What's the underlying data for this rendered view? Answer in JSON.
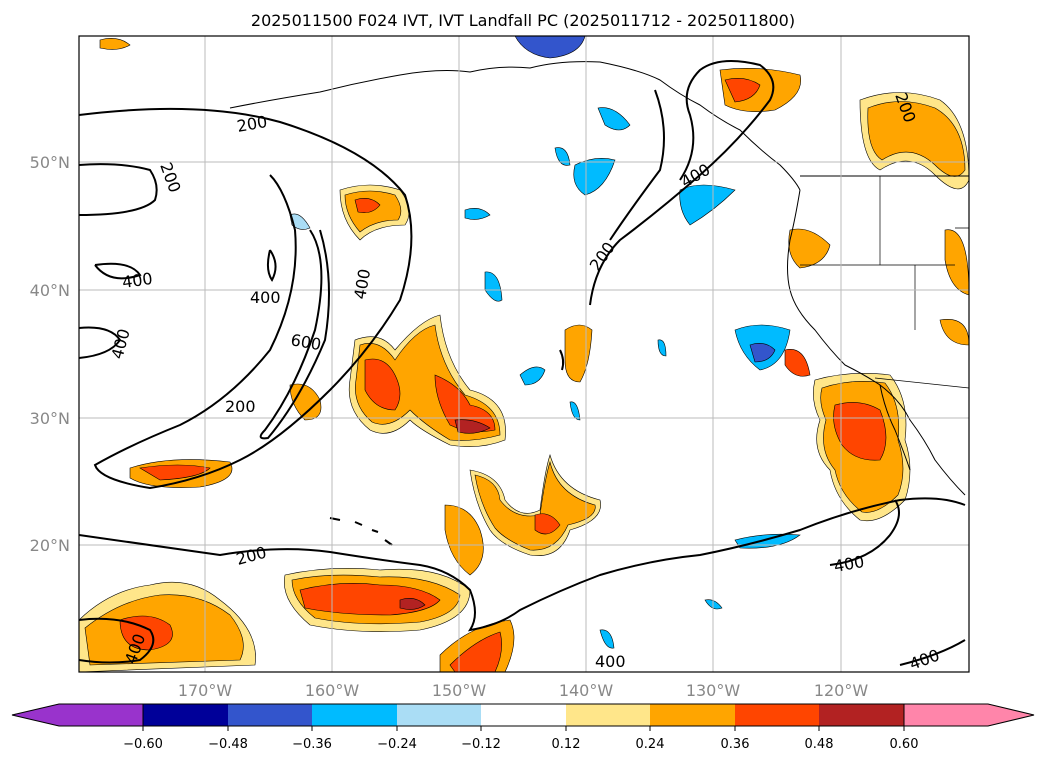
{
  "title": "2025011500 F024 IVT, IVT Landfall PC (2025011712 - 2025011800)",
  "map": {
    "lat_ticks": [
      "50°N",
      "40°N",
      "30°N",
      "20°N"
    ],
    "lon_ticks": [
      "170°W",
      "160°W",
      "150°W",
      "140°W",
      "130°W",
      "120°W"
    ],
    "grid": true
  },
  "contour_labels": [
    "200",
    "200",
    "400",
    "400",
    "400",
    "600",
    "200",
    "400",
    "200",
    "400",
    "200",
    "400",
    "400",
    "400",
    "200",
    "400"
  ],
  "colorbar": {
    "ticks": [
      "−0.60",
      "−0.48",
      "−0.36",
      "−0.24",
      "−0.12",
      "0.12",
      "0.24",
      "0.36",
      "0.48",
      "0.60"
    ],
    "colors": [
      "#9933cc",
      "#000099",
      "#3355cc",
      "#00bbff",
      "#aaddf5",
      "#ffffff",
      "#ffe68a",
      "#ffa500",
      "#ff4500",
      "#b22222",
      "#ff85aa"
    ]
  },
  "fill_colors": {
    "pos1": "#ffe68a",
    "pos2": "#ffa500",
    "pos3": "#ff4500",
    "pos4": "#b22222",
    "neg1": "#aaddf5",
    "neg2": "#00bbff",
    "neg3": "#3355cc"
  }
}
